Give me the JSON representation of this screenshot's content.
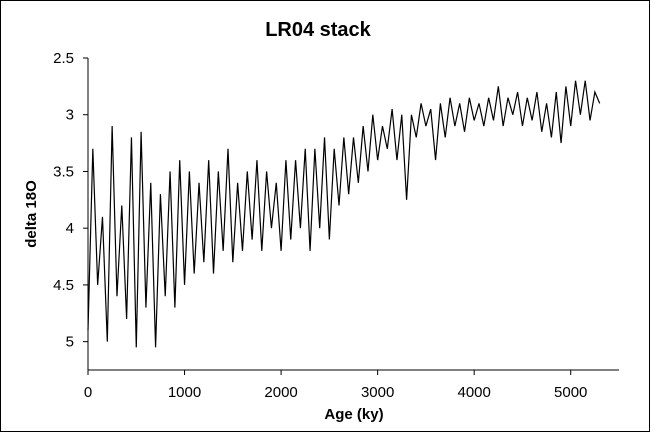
{
  "chart_data": {
    "type": "line",
    "title": "LR04 stack",
    "x_label": "Age (ky)",
    "y_label": "delta 18O",
    "xlim": [
      0,
      5500
    ],
    "xticks": [
      0,
      1000,
      2000,
      3000,
      4000,
      5000
    ],
    "ylim": [
      2.5,
      5.25
    ],
    "yticks": [
      2.5,
      3,
      3.5,
      4,
      4.5,
      5
    ],
    "y_inverted": true,
    "series": [
      {
        "color": "#000000",
        "x": [
          0,
          50,
          100,
          150,
          200,
          250,
          300,
          350,
          400,
          450,
          500,
          550,
          600,
          650,
          700,
          750,
          800,
          850,
          900,
          950,
          1000,
          1050,
          1100,
          1150,
          1200,
          1250,
          1300,
          1350,
          1400,
          1450,
          1500,
          1550,
          1600,
          1650,
          1700,
          1750,
          1800,
          1850,
          1900,
          1950,
          2000,
          2050,
          2100,
          2150,
          2200,
          2250,
          2300,
          2350,
          2400,
          2450,
          2500,
          2550,
          2600,
          2650,
          2700,
          2750,
          2800,
          2850,
          2900,
          2950,
          3000,
          3050,
          3100,
          3150,
          3200,
          3250,
          3300,
          3350,
          3400,
          3450,
          3500,
          3550,
          3600,
          3650,
          3700,
          3750,
          3800,
          3850,
          3900,
          3950,
          4000,
          4050,
          4100,
          4150,
          4200,
          4250,
          4300,
          4350,
          4400,
          4450,
          4500,
          4550,
          4600,
          4650,
          4700,
          4750,
          4800,
          4850,
          4900,
          4950,
          5000,
          5050,
          5100,
          5150,
          5200,
          5250,
          5300
        ],
        "values": [
          4.9,
          3.3,
          4.5,
          3.9,
          5.0,
          3.1,
          4.6,
          3.8,
          4.8,
          3.2,
          5.05,
          3.15,
          4.7,
          3.6,
          5.05,
          3.7,
          4.6,
          3.5,
          4.7,
          3.4,
          4.5,
          3.5,
          4.4,
          3.6,
          4.3,
          3.4,
          4.4,
          3.5,
          4.2,
          3.3,
          4.3,
          3.6,
          4.2,
          3.5,
          4.1,
          3.4,
          4.2,
          3.5,
          4.0,
          3.6,
          4.2,
          3.4,
          4.1,
          3.4,
          4.0,
          3.3,
          4.2,
          3.3,
          4.0,
          3.2,
          4.1,
          3.3,
          3.8,
          3.2,
          3.7,
          3.2,
          3.6,
          3.1,
          3.5,
          3.0,
          3.4,
          3.1,
          3.3,
          2.95,
          3.4,
          3.0,
          3.75,
          3.0,
          3.2,
          2.9,
          3.1,
          2.95,
          3.4,
          2.9,
          3.2,
          2.85,
          3.1,
          2.9,
          3.15,
          2.85,
          3.05,
          2.9,
          3.1,
          2.85,
          3.05,
          2.75,
          3.1,
          2.85,
          3.0,
          2.8,
          3.1,
          2.85,
          3.05,
          2.8,
          3.15,
          2.9,
          3.2,
          2.8,
          3.25,
          2.75,
          3.1,
          2.7,
          3.0,
          2.7,
          3.05,
          2.8,
          2.9
        ]
      }
    ]
  }
}
